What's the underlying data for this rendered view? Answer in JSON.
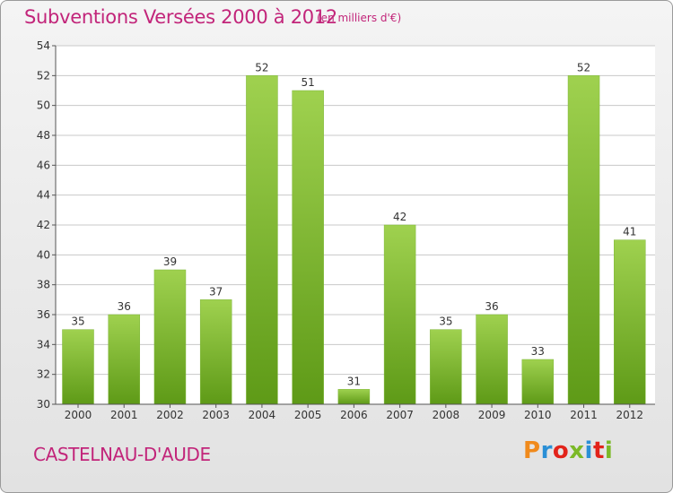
{
  "header": {
    "title": "Subventions Versées 2000 à 2012",
    "subtitle": "(en milliers d'€)"
  },
  "footer": {
    "commune": "CASTELNAU-D'AUDE",
    "logo_text": "Proxiti"
  },
  "colors": {
    "title": "#c2257a",
    "bar_light": "#9fd14f",
    "bar_dark": "#5e9a17",
    "grid": "#c8c8c8",
    "logo_letters": [
      "#f08a1c",
      "#2a8fd6",
      "#e2231a",
      "#7bb927",
      "#2a8fd6",
      "#e2231a",
      "#7bb927"
    ]
  },
  "chart_data": {
    "type": "bar",
    "title": "Subventions Versées 2000 à 2012",
    "categories": [
      "2000",
      "2001",
      "2002",
      "2003",
      "2004",
      "2005",
      "2006",
      "2007",
      "2008",
      "2009",
      "2010",
      "2011",
      "2012"
    ],
    "values": [
      35,
      36,
      39,
      37,
      52,
      51,
      31,
      42,
      35,
      36,
      33,
      52,
      41
    ],
    "ylim": [
      30,
      54
    ],
    "yticks": [
      30,
      32,
      34,
      36,
      38,
      40,
      42,
      44,
      46,
      48,
      50,
      52,
      54
    ],
    "grid": true,
    "data_labels": true
  }
}
